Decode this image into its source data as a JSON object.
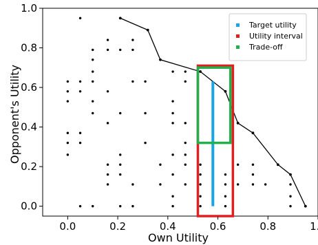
{
  "chart_data": {
    "type": "scatter",
    "title": "",
    "xlabel": "Own Utility",
    "ylabel": "Opponent's Utility",
    "xlim": [
      -0.1,
      1.0
    ],
    "ylim": [
      -0.05,
      1.0
    ],
    "x_ticks": [
      "0.0",
      "0.2",
      "0.4",
      "0.6",
      "0.8",
      "1.0"
    ],
    "x_tick_values": [
      0.0,
      0.2,
      0.4,
      0.6,
      0.8,
      1.0
    ],
    "y_ticks": [
      "0.0",
      "0.2",
      "0.4",
      "0.6",
      "0.8",
      "1.0"
    ],
    "y_tick_values": [
      0.0,
      0.2,
      0.4,
      0.6,
      0.8,
      1.0
    ],
    "grid": false,
    "legend_position": "top-right",
    "points": [
      [
        0.05,
        0.95
      ],
      [
        0.21,
        0.95
      ],
      [
        0.16,
        0.84
      ],
      [
        0.26,
        0.84
      ],
      [
        0.1,
        0.79
      ],
      [
        0.16,
        0.79
      ],
      [
        0.21,
        0.79
      ],
      [
        0.26,
        0.79
      ],
      [
        0.1,
        0.74
      ],
      [
        0.1,
        0.68
      ],
      [
        0.42,
        0.68
      ],
      [
        0.47,
        0.68
      ],
      [
        0.0,
        0.63
      ],
      [
        0.05,
        0.63
      ],
      [
        0.1,
        0.63
      ],
      [
        0.26,
        0.63
      ],
      [
        0.31,
        0.63
      ],
      [
        0.47,
        0.63
      ],
      [
        0.0,
        0.58
      ],
      [
        0.05,
        0.58
      ],
      [
        0.16,
        0.58
      ],
      [
        0.0,
        0.53
      ],
      [
        0.1,
        0.53
      ],
      [
        0.42,
        0.53
      ],
      [
        0.1,
        0.47
      ],
      [
        0.21,
        0.47
      ],
      [
        0.31,
        0.47
      ],
      [
        0.42,
        0.47
      ],
      [
        0.16,
        0.42
      ],
      [
        0.42,
        0.42
      ],
      [
        0.47,
        0.42
      ],
      [
        0.0,
        0.37
      ],
      [
        0.05,
        0.37
      ],
      [
        0.0,
        0.32
      ],
      [
        0.05,
        0.32
      ],
      [
        0.31,
        0.32
      ],
      [
        0.47,
        0.32
      ],
      [
        0.0,
        0.26
      ],
      [
        0.21,
        0.26
      ],
      [
        0.42,
        0.26
      ],
      [
        0.47,
        0.26
      ],
      [
        0.16,
        0.21
      ],
      [
        0.21,
        0.21
      ],
      [
        0.37,
        0.21
      ],
      [
        0.47,
        0.21
      ],
      [
        0.53,
        0.21
      ],
      [
        0.68,
        0.21
      ],
      [
        0.74,
        0.21
      ],
      [
        0.16,
        0.16
      ],
      [
        0.21,
        0.16
      ],
      [
        0.42,
        0.16
      ],
      [
        0.53,
        0.16
      ],
      [
        0.63,
        0.16
      ],
      [
        0.74,
        0.16
      ],
      [
        0.16,
        0.11
      ],
      [
        0.26,
        0.11
      ],
      [
        0.37,
        0.11
      ],
      [
        0.47,
        0.11
      ],
      [
        0.53,
        0.11
      ],
      [
        0.63,
        0.11
      ],
      [
        0.68,
        0.11
      ],
      [
        0.74,
        0.11
      ],
      [
        0.79,
        0.11
      ],
      [
        0.89,
        0.11
      ],
      [
        0.42,
        0.05
      ],
      [
        0.53,
        0.05
      ],
      [
        0.63,
        0.05
      ],
      [
        0.89,
        0.05
      ],
      [
        0.05,
        0.0
      ],
      [
        0.1,
        0.0
      ],
      [
        0.21,
        0.0
      ],
      [
        0.26,
        0.0
      ],
      [
        0.42,
        0.0
      ],
      [
        0.53,
        0.0
      ],
      [
        0.63,
        0.0
      ],
      [
        0.89,
        0.0
      ],
      [
        0.95,
        0.0
      ]
    ],
    "pareto_frontier": {
      "x": [
        0.21,
        0.32,
        0.37,
        0.53,
        0.63,
        0.68,
        0.74,
        0.84,
        0.89,
        0.95
      ],
      "y": [
        0.95,
        0.89,
        0.74,
        0.68,
        0.58,
        0.42,
        0.37,
        0.21,
        0.16,
        0.0
      ],
      "color": "#000000"
    },
    "target_utility": {
      "name": "Target utility",
      "x": 0.58,
      "y": [
        0.0,
        0.63
      ],
      "color": "#1aa6e6"
    },
    "utility_interval": {
      "name": "Utility interval",
      "x": [
        0.52,
        0.66
      ],
      "y": [
        -0.05,
        0.71
      ],
      "color": "#e02020"
    },
    "trade_off": {
      "name": "Trade-off",
      "x": [
        0.52,
        0.65
      ],
      "y": [
        0.32,
        0.7
      ],
      "color": "#22b04c"
    }
  }
}
